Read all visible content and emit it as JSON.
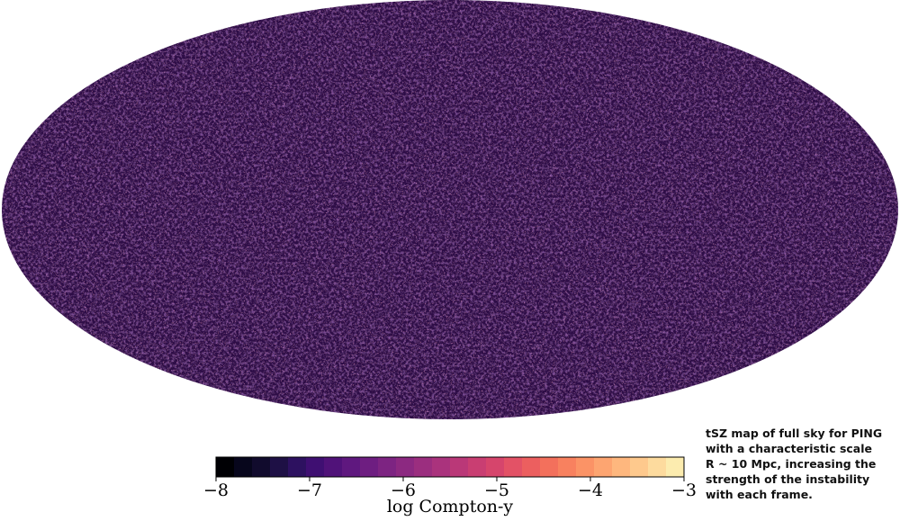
{
  "chart_data": {
    "type": "skymap",
    "colorbar_label": "log Compton-y",
    "xlim": [
      -8,
      -3
    ],
    "xticks": [
      {
        "value": -8,
        "label": "−8"
      },
      {
        "value": -7,
        "label": "−7"
      },
      {
        "value": -6,
        "label": "−6"
      },
      {
        "value": -5,
        "label": "−5"
      },
      {
        "value": -4,
        "label": "−4"
      },
      {
        "value": -3,
        "label": "−3"
      }
    ],
    "colors": [
      "#000004",
      "#07061c",
      "#110b2d",
      "#1e1045",
      "#2d1160",
      "#3f0f72",
      "#501279",
      "#5f187f",
      "#6e1e81",
      "#7d2482",
      "#8c2981",
      "#9b2e7f",
      "#aa337d",
      "#ba3878",
      "#c93e72",
      "#d6456c",
      "#e35266",
      "#ec5f5f",
      "#f3705c",
      "#f8815f",
      "#fb9366",
      "#fda571",
      "#feb77e",
      "#fec98d",
      "#fddb9e",
      "#fcecaf"
    ],
    "annotation": [
      "tSZ map of full sky for PING",
      "with a characteristic scale",
      "R ~ 10 Mpc, increasing the",
      "strength of the instability",
      "with each frame."
    ]
  }
}
